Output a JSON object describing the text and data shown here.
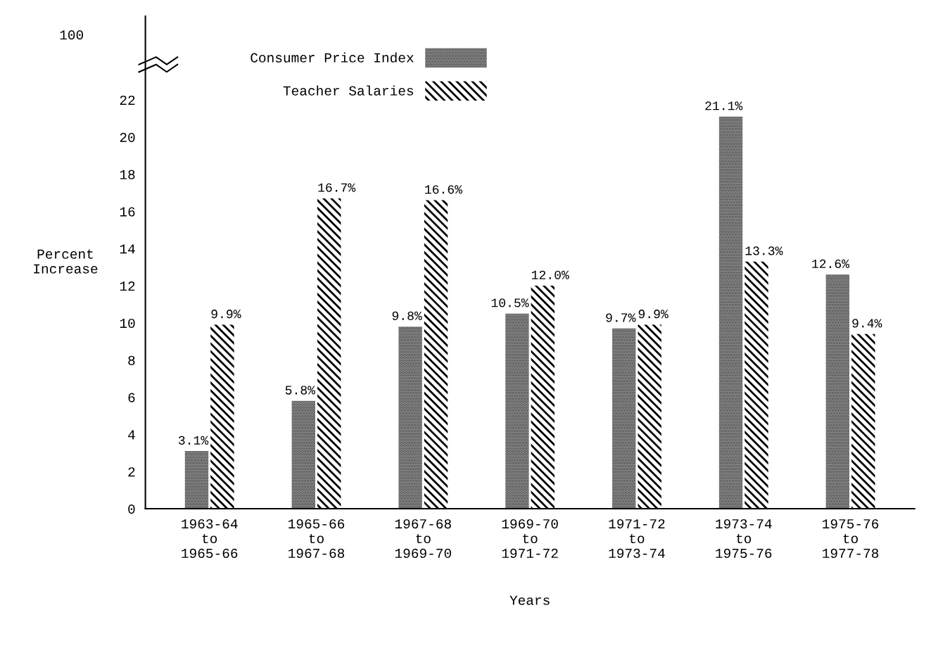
{
  "chart_data": {
    "type": "bar",
    "xlabel": "Years",
    "ylabel": "Percent\nIncrease",
    "categories": [
      "1963-64\nto\n1965-66",
      "1965-66\nto\n1967-68",
      "1967-68\nto\n1969-70",
      "1969-70\nto\n1971-72",
      "1971-72\nto\n1973-74",
      "1973-74\nto\n1975-76",
      "1975-76\nto\n1977-78"
    ],
    "series": [
      {
        "name": "Consumer Price Index",
        "color": "#8c8c8c",
        "values": [
          3.1,
          5.8,
          9.8,
          10.5,
          9.7,
          21.1,
          12.6
        ],
        "value_labels": [
          "3.1%",
          "5.8%",
          "9.8%",
          "10.5%",
          "9.7%",
          "21.1%",
          "12.6%"
        ]
      },
      {
        "name": "Teacher Salaries",
        "color": "#ffffff",
        "values": [
          9.9,
          16.7,
          16.6,
          12.0,
          9.9,
          13.3,
          9.4
        ],
        "value_labels": [
          "9.9%",
          "16.7%",
          "16.6%",
          "12.0%",
          "9.9%",
          "13.3%",
          "9.4%"
        ]
      }
    ],
    "ylim": [
      0,
      26.5
    ],
    "yticks": [
      0,
      2,
      4,
      6,
      8,
      10,
      12,
      14,
      16,
      18,
      20,
      22
    ],
    "annotations": [
      "100"
    ],
    "grid": false,
    "legend": "top left"
  }
}
